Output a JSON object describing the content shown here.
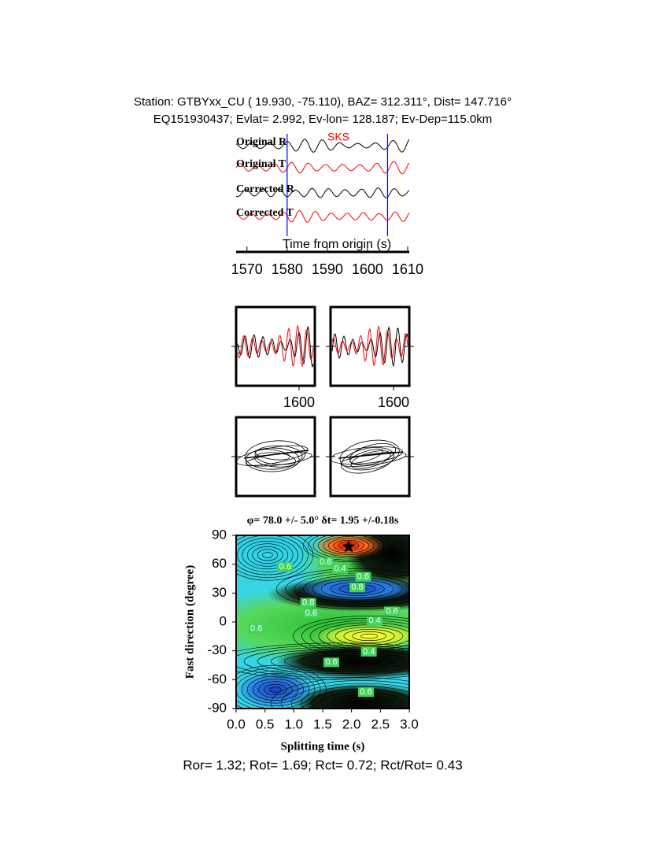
{
  "header": {
    "line1": "Station: GTBYxx_CU (  19.930,  -75.110), BAZ=  312.311°, Dist=  147.716°",
    "line2": "EQ151930437; Evlat=   2.992, Ev-lon= 128.187; Ev-Dep=115.0km"
  },
  "chart_data": [
    {
      "type": "seismogram",
      "phase_label": "SKS",
      "trace_labels": [
        "Original R",
        "Original T",
        "Corrected R",
        "Corrected T"
      ],
      "trace_colors": [
        "#000000",
        "#ff0000",
        "#000000",
        "#ff0000"
      ],
      "window_color": "#0000ff",
      "xlabel": "Time from origin (s)",
      "xlim": [
        1567.3,
        1610.4
      ],
      "xticks": [
        1570,
        1580,
        1590,
        1600,
        1610
      ],
      "window": [
        1580,
        1605
      ]
    },
    {
      "type": "waveform-pair",
      "xticks": [
        1600,
        1600
      ],
      "colors": [
        "#000000",
        "#ff0000"
      ]
    },
    {
      "type": "contour",
      "title": "φ= 78.0 +/- 5.0° δt= 1.95 +/-0.18s",
      "xlabel": "Splitting time (s)",
      "ylabel": "Fast direction (degree)",
      "xlim": [
        0,
        3
      ],
      "ylim": [
        -90,
        90
      ],
      "xticks": [
        {
          "value": 0,
          "label": "0.0"
        },
        {
          "value": 0.5,
          "label": "0.5"
        },
        {
          "value": 1,
          "label": "1.0"
        },
        {
          "value": 1.5,
          "label": "1.5"
        },
        {
          "value": 2,
          "label": "2.0"
        },
        {
          "value": 2.5,
          "label": "2.5"
        },
        {
          "value": 3,
          "label": "3.0"
        }
      ],
      "yticks": [
        -90,
        -60,
        -30,
        0,
        30,
        60,
        90
      ],
      "best": [
        1.95,
        78
      ],
      "contour_labels": [
        {
          "x": 0.85,
          "y": 57,
          "value": 0.6
        },
        {
          "x": 1.55,
          "y": 62,
          "value": 0.6
        },
        {
          "x": 1.8,
          "y": 55,
          "value": 0.4
        },
        {
          "x": 2.2,
          "y": 47,
          "value": 0.6
        },
        {
          "x": 2.1,
          "y": 36,
          "value": 0.8
        },
        {
          "x": 1.25,
          "y": 20,
          "value": 0.8
        },
        {
          "x": 1.3,
          "y": 9,
          "value": 0.6
        },
        {
          "x": 2.7,
          "y": 11,
          "value": 0.6
        },
        {
          "x": 2.4,
          "y": 1,
          "value": 0.4
        },
        {
          "x": 2.3,
          "y": -31,
          "value": 0.4
        },
        {
          "x": 1.65,
          "y": -42,
          "value": 0.6
        },
        {
          "x": 2.25,
          "y": -73,
          "value": 0.6
        },
        {
          "x": 0.35,
          "y": -7,
          "value": 0.6
        }
      ]
    },
    {
      "type": "text",
      "footer": "Ror= 1.32; Rot= 1.69; Rct= 0.72; Rct/Rot= 0.43"
    }
  ]
}
